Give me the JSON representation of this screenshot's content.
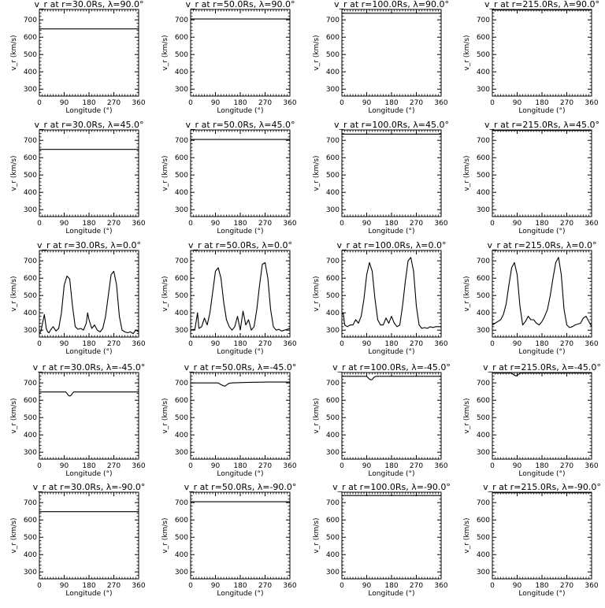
{
  "figure": {
    "background": "#ffffff",
    "line_color": "#000000",
    "x_axis_label": "Longitude (°)",
    "y_axis_label": "v_r (km/s)",
    "x_ticks": [
      "0",
      "90",
      "180",
      "270",
      "360"
    ],
    "y_ticks": [
      "300",
      "400",
      "500",
      "600",
      "700"
    ]
  },
  "chart_data": [
    {
      "type": "line",
      "title": "v_r at r=30.0Rs, λ=90.0°",
      "xlim": [
        0,
        360
      ],
      "ylim": [
        260,
        760
      ],
      "series": [
        {
          "x": [
            0,
            360
          ],
          "y": [
            648,
            648
          ]
        }
      ]
    },
    {
      "type": "line",
      "title": "v_r at r=50.0Rs, λ=90.0°",
      "xlim": [
        0,
        360
      ],
      "ylim": [
        260,
        760
      ],
      "series": [
        {
          "x": [
            0,
            360
          ],
          "y": [
            705,
            705
          ]
        }
      ]
    },
    {
      "type": "line",
      "title": "v_r at r=100.0Rs, λ=90.0°",
      "xlim": [
        0,
        360
      ],
      "ylim": [
        260,
        760
      ],
      "series": [
        {
          "x": [
            0,
            360
          ],
          "y": [
            738,
            738
          ]
        }
      ]
    },
    {
      "type": "line",
      "title": "v_r at r=215.0Rs, λ=90.0°",
      "xlim": [
        0,
        360
      ],
      "ylim": [
        260,
        760
      ],
      "series": [
        {
          "x": [
            0,
            360
          ],
          "y": [
            757,
            757
          ]
        }
      ]
    },
    {
      "type": "line",
      "title": "v_r at r=30.0Rs, λ=45.0°",
      "xlim": [
        0,
        360
      ],
      "ylim": [
        260,
        760
      ],
      "series": [
        {
          "x": [
            0,
            360
          ],
          "y": [
            648,
            648
          ]
        }
      ]
    },
    {
      "type": "line",
      "title": "v_r at r=50.0Rs, λ=45.0°",
      "xlim": [
        0,
        360
      ],
      "ylim": [
        260,
        760
      ],
      "series": [
        {
          "x": [
            0,
            360
          ],
          "y": [
            705,
            705
          ]
        }
      ]
    },
    {
      "type": "line",
      "title": "v_r at r=100.0Rs, λ=45.0°",
      "xlim": [
        0,
        360
      ],
      "ylim": [
        260,
        760
      ],
      "series": [
        {
          "x": [
            0,
            360
          ],
          "y": [
            736,
            736
          ]
        }
      ]
    },
    {
      "type": "line",
      "title": "v_r at r=215.0Rs, λ=45.0°",
      "xlim": [
        0,
        360
      ],
      "ylim": [
        260,
        760
      ],
      "series": [
        {
          "x": [
            0,
            360
          ],
          "y": [
            757,
            757
          ]
        }
      ]
    },
    {
      "type": "line",
      "title": "v_r at r=30.0Rs, λ=0.0°",
      "xlim": [
        0,
        360
      ],
      "ylim": [
        260,
        760
      ],
      "series": [
        {
          "x": [
            0,
            6,
            10,
            18,
            25,
            30,
            35,
            40,
            50,
            60,
            70,
            80,
            90,
            100,
            110,
            120,
            130,
            140,
            150,
            160,
            170,
            175,
            180,
            190,
            200,
            210,
            220,
            230,
            240,
            250,
            260,
            270,
            280,
            290,
            300,
            310,
            320,
            330,
            340,
            350,
            360
          ],
          "y": [
            280,
            295,
            330,
            390,
            310,
            290,
            285,
            300,
            320,
            295,
            310,
            400,
            560,
            612,
            595,
            440,
            320,
            305,
            310,
            300,
            340,
            400,
            360,
            310,
            330,
            300,
            290,
            310,
            380,
            500,
            620,
            640,
            560,
            380,
            300,
            290,
            285,
            290,
            280,
            300,
            290
          ]
        }
      ]
    },
    {
      "type": "line",
      "title": "v_r at r=50.0Rs, λ=0.0°",
      "xlim": [
        0,
        360
      ],
      "ylim": [
        260,
        760
      ],
      "series": [
        {
          "x": [
            0,
            10,
            15,
            25,
            30,
            40,
            50,
            60,
            70,
            80,
            90,
            100,
            110,
            120,
            130,
            140,
            150,
            160,
            170,
            180,
            190,
            200,
            210,
            220,
            230,
            240,
            250,
            260,
            270,
            280,
            290,
            300,
            310,
            320,
            330,
            340,
            350,
            360
          ],
          "y": [
            300,
            305,
            300,
            400,
            310,
            320,
            370,
            330,
            400,
            520,
            640,
            660,
            600,
            460,
            360,
            320,
            300,
            320,
            380,
            300,
            410,
            330,
            360,
            300,
            320,
            420,
            560,
            680,
            690,
            600,
            420,
            320,
            300,
            305,
            295,
            300,
            305,
            310
          ]
        }
      ]
    },
    {
      "type": "line",
      "title": "v_r at r=100.0Rs, λ=0.0°",
      "xlim": [
        0,
        360
      ],
      "ylim": [
        260,
        760
      ],
      "series": [
        {
          "x": [
            0,
            5,
            10,
            20,
            30,
            40,
            50,
            60,
            70,
            80,
            90,
            100,
            110,
            120,
            130,
            140,
            150,
            160,
            170,
            180,
            190,
            200,
            210,
            220,
            230,
            240,
            250,
            260,
            270,
            280,
            290,
            300,
            310,
            320,
            330,
            340,
            350,
            360
          ],
          "y": [
            390,
            400,
            330,
            320,
            330,
            330,
            360,
            340,
            380,
            480,
            620,
            690,
            640,
            480,
            360,
            330,
            330,
            370,
            340,
            380,
            340,
            320,
            330,
            440,
            580,
            700,
            720,
            640,
            440,
            330,
            310,
            315,
            310,
            320,
            315,
            320,
            320,
            320
          ]
        }
      ]
    },
    {
      "type": "line",
      "title": "v_r at r=215.0Rs, λ=0.0°",
      "xlim": [
        0,
        360
      ],
      "ylim": [
        260,
        760
      ],
      "series": [
        {
          "x": [
            0,
            10,
            20,
            30,
            40,
            50,
            60,
            70,
            80,
            90,
            100,
            110,
            120,
            130,
            140,
            150,
            160,
            170,
            180,
            190,
            200,
            210,
            220,
            230,
            240,
            250,
            260,
            270,
            280,
            290,
            300,
            310,
            320,
            330,
            340,
            350,
            360
          ],
          "y": [
            330,
            340,
            350,
            360,
            390,
            450,
            560,
            660,
            690,
            620,
            440,
            330,
            350,
            380,
            360,
            360,
            340,
            330,
            350,
            380,
            420,
            500,
            600,
            690,
            720,
            620,
            420,
            330,
            315,
            320,
            330,
            335,
            340,
            370,
            380,
            350,
            320
          ]
        }
      ]
    },
    {
      "type": "line",
      "title": "v_r at r=30.0Rs, λ=-45.0°",
      "xlim": [
        0,
        360
      ],
      "ylim": [
        260,
        760
      ],
      "series": [
        {
          "x": [
            0,
            95,
            100,
            105,
            110,
            115,
            120,
            125,
            360
          ],
          "y": [
            648,
            648,
            640,
            628,
            624,
            628,
            640,
            648,
            648
          ]
        }
      ]
    },
    {
      "type": "line",
      "title": "v_r at r=50.0Rs, λ=-45.0°",
      "xlim": [
        0,
        360
      ],
      "ylim": [
        260,
        760
      ],
      "series": [
        {
          "x": [
            0,
            100,
            110,
            120,
            125,
            130,
            140,
            150,
            200,
            280,
            360
          ],
          "y": [
            700,
            700,
            690,
            683,
            682,
            688,
            698,
            700,
            703,
            705,
            705
          ]
        }
      ]
    },
    {
      "type": "line",
      "title": "v_r at r=100.0Rs, λ=-45.0°",
      "xlim": [
        0,
        360
      ],
      "ylim": [
        260,
        760
      ],
      "series": [
        {
          "x": [
            0,
            90,
            95,
            100,
            105,
            110,
            115,
            120,
            125,
            360
          ],
          "y": [
            738,
            738,
            730,
            722,
            718,
            720,
            730,
            736,
            738,
            738
          ]
        }
      ]
    },
    {
      "type": "line",
      "title": "v_r at r=215.0Rs, λ=-45.0°",
      "xlim": [
        0,
        360
      ],
      "ylim": [
        260,
        760
      ],
      "series": [
        {
          "x": [
            0,
            70,
            75,
            80,
            85,
            90,
            95,
            100,
            105,
            360
          ],
          "y": [
            757,
            757,
            750,
            744,
            741,
            743,
            750,
            756,
            757,
            757
          ]
        }
      ]
    },
    {
      "type": "line",
      "title": "v_r at r=30.0Rs, λ=-90.0°",
      "xlim": [
        0,
        360
      ],
      "ylim": [
        260,
        760
      ],
      "series": [
        {
          "x": [
            0,
            360
          ],
          "y": [
            648,
            648
          ]
        }
      ]
    },
    {
      "type": "line",
      "title": "v_r at r=50.0Rs, λ=-90.0°",
      "xlim": [
        0,
        360
      ],
      "ylim": [
        260,
        760
      ],
      "series": [
        {
          "x": [
            0,
            360
          ],
          "y": [
            705,
            705
          ]
        }
      ]
    },
    {
      "type": "line",
      "title": "v_r at r=100.0Rs, λ=-90.0°",
      "xlim": [
        0,
        360
      ],
      "ylim": [
        260,
        760
      ],
      "series": [
        {
          "x": [
            0,
            360
          ],
          "y": [
            741,
            741
          ]
        }
      ]
    },
    {
      "type": "line",
      "title": "v_r at r=215.0Rs, λ=-90.0°",
      "xlim": [
        0,
        360
      ],
      "ylim": [
        260,
        760
      ],
      "series": [
        {
          "x": [
            0,
            360
          ],
          "y": [
            757,
            757
          ]
        }
      ]
    }
  ]
}
